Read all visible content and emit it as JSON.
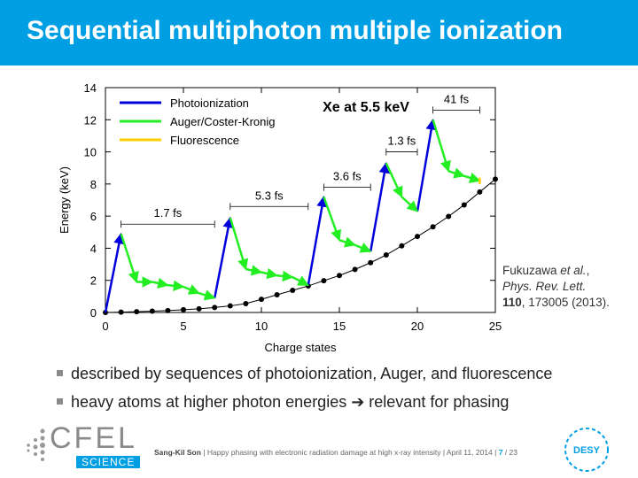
{
  "header": {
    "title": "Sequential multiphoton multiple ionization"
  },
  "chart_data": {
    "type": "line",
    "title": "Xe at 5.5 keV",
    "xlabel": "Charge states",
    "ylabel": "Energy (keV)",
    "xlim": [
      0,
      25
    ],
    "ylim": [
      0,
      14
    ],
    "x_ticks": [
      "0",
      "5",
      "10",
      "15",
      "20",
      "25"
    ],
    "y_ticks": [
      "0",
      "2",
      "4",
      "6",
      "8",
      "10",
      "12",
      "14"
    ],
    "legend": {
      "placement": "top-left",
      "entries": [
        {
          "name": "Photoionization",
          "color": "#0000dd"
        },
        {
          "name": "Auger/Coster-Kronig",
          "color": "#22ee22"
        },
        {
          "name": "Fluorescence",
          "color": "#ffcc00"
        }
      ]
    },
    "ground_state_energy": {
      "x": [
        0,
        1,
        2,
        3,
        4,
        5,
        6,
        7,
        8,
        9,
        10,
        11,
        12,
        13,
        14,
        15,
        16,
        17,
        18,
        19,
        20,
        21,
        22,
        23,
        24,
        25
      ],
      "y": [
        0,
        0.02,
        0.05,
        0.08,
        0.12,
        0.17,
        0.23,
        0.31,
        0.41,
        0.55,
        0.82,
        1.1,
        1.38,
        1.65,
        1.98,
        2.3,
        2.68,
        3.1,
        3.58,
        4.15,
        4.73,
        5.33,
        5.98,
        6.7,
        7.5,
        8.3
      ]
    },
    "series": [
      {
        "name": "Photoionization",
        "color": "#0000dd",
        "segments": [
          [
            [
              0,
              0
            ],
            [
              1,
              4.9
            ]
          ],
          [
            [
              7,
              0.9
            ],
            [
              8,
              5.9
            ]
          ],
          [
            [
              13,
              1.7
            ],
            [
              14,
              7.2
            ]
          ],
          [
            [
              17,
              3.8
            ],
            [
              18,
              9.3
            ]
          ],
          [
            [
              20,
              6.3
            ],
            [
              21,
              12
            ]
          ]
        ]
      },
      {
        "name": "Auger/Coster-Kronig",
        "color": "#22ee22",
        "segments": [
          [
            [
              1,
              4.9
            ],
            [
              2,
              1.9
            ],
            [
              3,
              1.9
            ],
            [
              4,
              1.7
            ],
            [
              5,
              1.6
            ],
            [
              6,
              1.2
            ],
            [
              7,
              0.9
            ]
          ],
          [
            [
              8,
              5.9
            ],
            [
              9,
              2.7
            ],
            [
              10,
              2.5
            ],
            [
              11,
              2.3
            ],
            [
              12,
              2.2
            ],
            [
              13,
              1.7
            ]
          ],
          [
            [
              14,
              7.2
            ],
            [
              15,
              4.5
            ],
            [
              16,
              4.2
            ],
            [
              17,
              3.8
            ]
          ],
          [
            [
              18,
              9.3
            ],
            [
              19,
              7.2
            ],
            [
              20,
              6.3
            ]
          ],
          [
            [
              21,
              12
            ],
            [
              22,
              8.8
            ],
            [
              23,
              8.5
            ],
            [
              24,
              8.2
            ]
          ]
        ]
      },
      {
        "name": "Fluorescence",
        "color": "#ffcc00",
        "segments": [
          [
            [
              24,
              8.4
            ],
            [
              24,
              8.0
            ]
          ]
        ]
      }
    ],
    "annotations": [
      {
        "text": "1.7 fs",
        "x": [
          1,
          7
        ],
        "y": 5.5
      },
      {
        "text": "5.3 fs",
        "x": [
          8,
          13
        ],
        "y": 6.6
      },
      {
        "text": "3.6 fs",
        "x": [
          14,
          17
        ],
        "y": 7.8
      },
      {
        "text": "1.3 fs",
        "x": [
          18,
          20
        ],
        "y": 10
      },
      {
        "text": "41 fs",
        "x": [
          21,
          24
        ],
        "y": 12.6
      }
    ]
  },
  "citation": {
    "line1": "Fukuzawa ",
    "line1_italic": "et al.",
    "line1_end": ",",
    "line2": "Phys. Rev. Lett.",
    "line3_bold": "110",
    "line3": ", 173005 (2013)."
  },
  "bullets": [
    "described by sequences of photoionization, Auger, and fluorescence",
    "heavy atoms at higher photon energies ➔ relevant for phasing"
  ],
  "footer": {
    "author": "Sang-Kil Son",
    "text": " | Happy phasing with electronic radiation damage at high x-ray intensity | April 11, 2014 | ",
    "page": "7",
    "total": " / 23",
    "logo_left": "CFEL",
    "logo_left_sub": "SCIENCE",
    "logo_right": "DESY"
  }
}
